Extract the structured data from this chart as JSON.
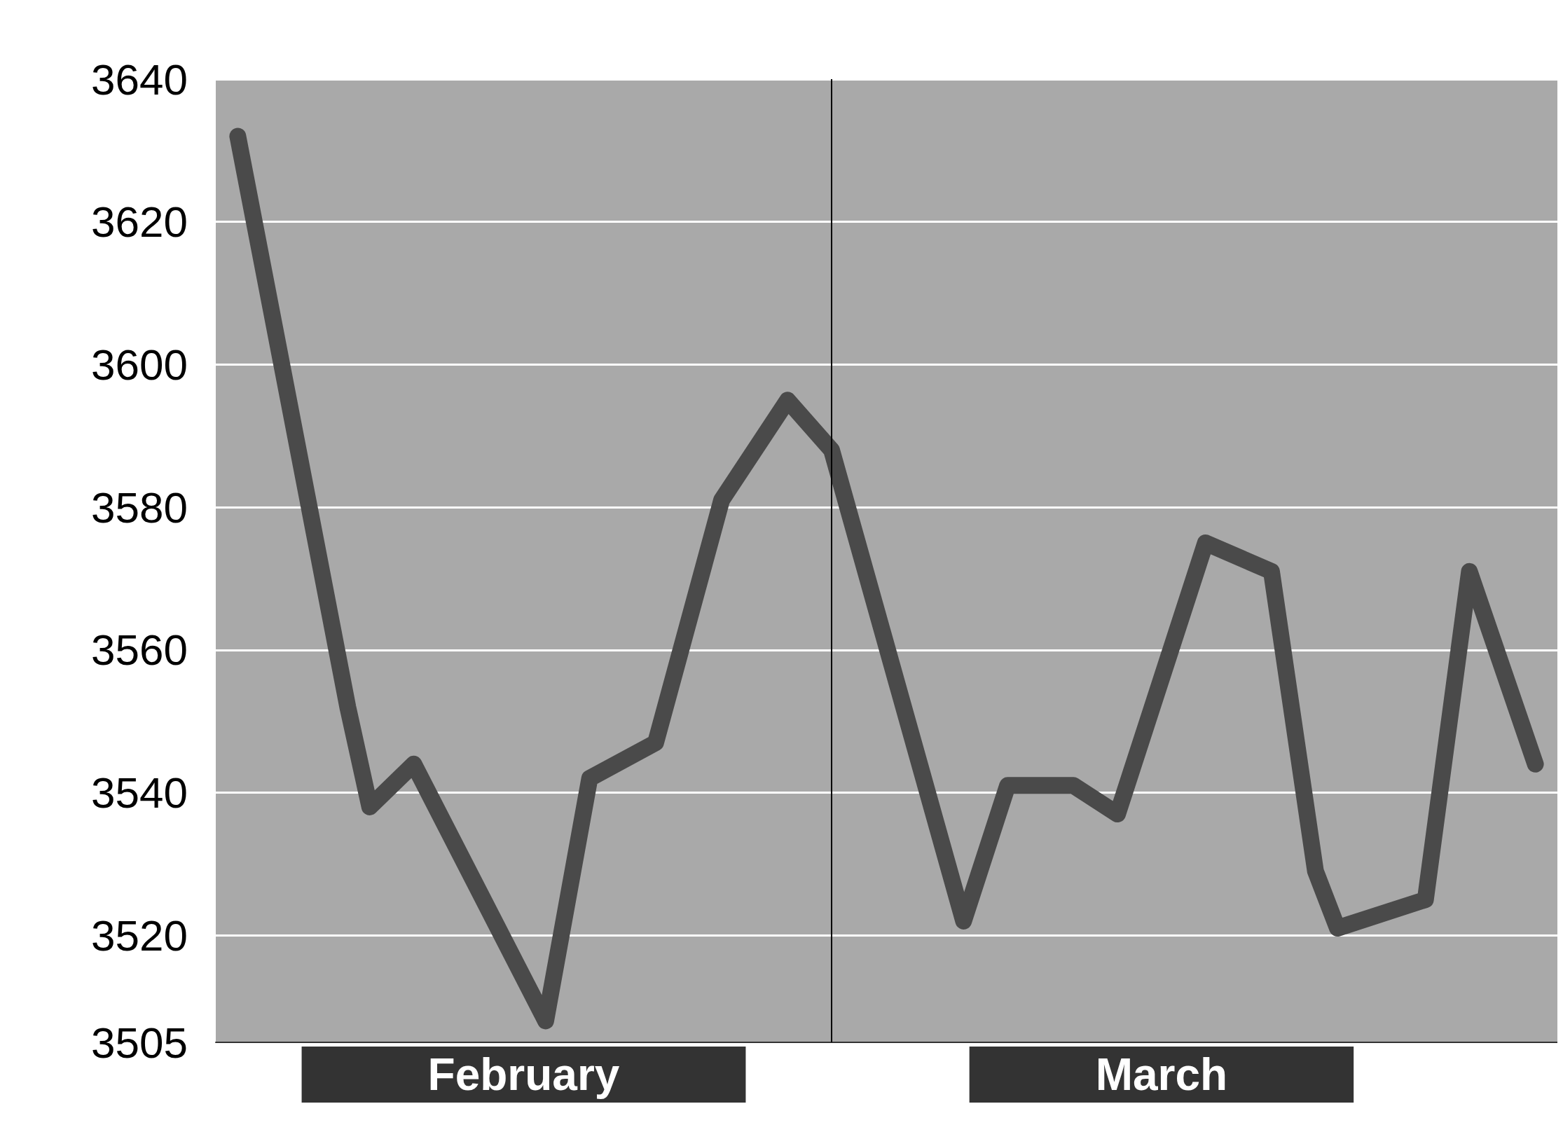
{
  "chart_data": {
    "type": "line",
    "x": [
      "--02-02",
      "--02-07",
      "--02-08",
      "--02-10",
      "--02-16",
      "--02-18",
      "--02-21",
      "--02-24",
      "--02-27",
      "--03-01",
      "--03-07",
      "--03-09",
      "--03-12",
      "--03-14",
      "--03-18",
      "--03-21",
      "--03-23",
      "--03-24",
      "--03-28",
      "--03-30",
      "--04-02"
    ],
    "series": [
      {
        "color": "#4a4a4a",
        "values": [
          3632,
          3552,
          3538,
          3544,
          3508,
          3542,
          3547,
          3581,
          3595,
          3588,
          3522,
          3541,
          3541,
          3537,
          3575,
          3571,
          3529,
          3521,
          3525,
          3571,
          3544
        ]
      }
    ],
    "xlim": [
      "--02-01",
      "--04-03"
    ],
    "xticks": [
      {
        "value": "--02-15",
        "label": "February"
      },
      {
        "value": "--03-16",
        "label": "March"
      }
    ],
    "ylim": [
      3505,
      3640
    ],
    "yticks": [
      3640,
      3620,
      3600,
      3580,
      3560,
      3540,
      3520,
      3505
    ],
    "ref_lines": [
      {
        "axis": "x",
        "value": "--03-01",
        "color": "#000000"
      }
    ],
    "grid": "y",
    "line_style": "solid"
  }
}
